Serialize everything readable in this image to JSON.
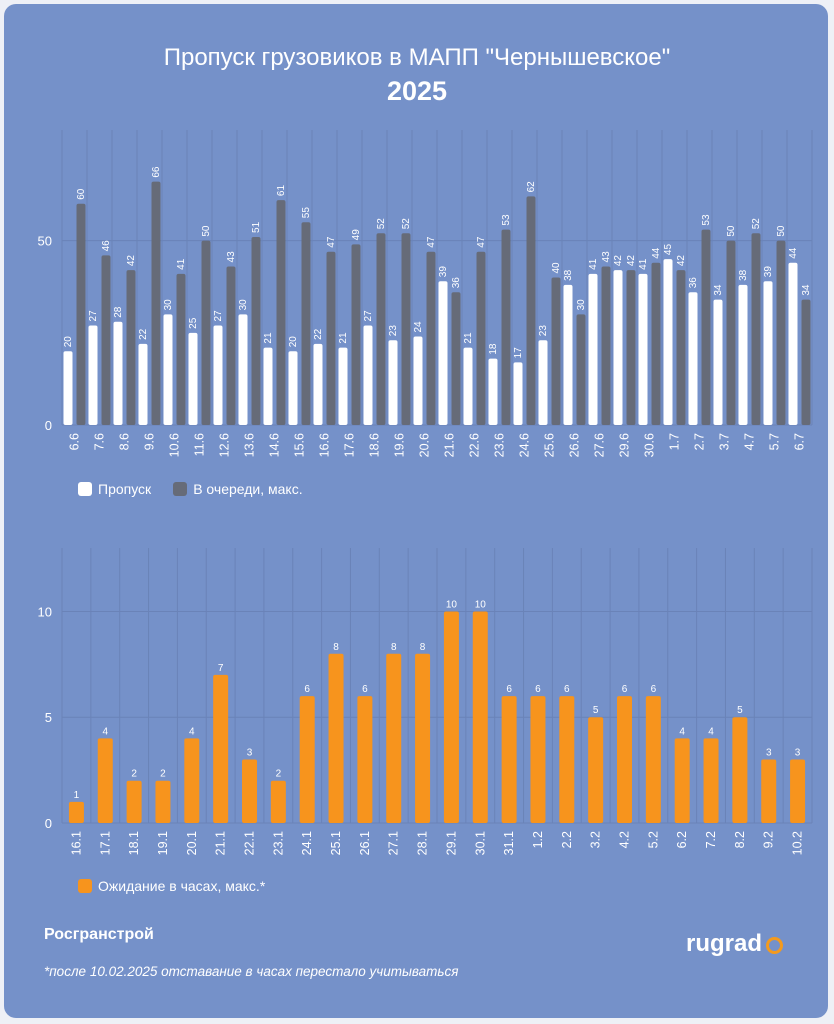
{
  "title": "Пропуск грузовиков в МАПП \"Чернышевское\"",
  "subtitle": "2025",
  "source": "Росгранстрой",
  "footnote": "*после 10.02.2025 отставание в часах перестало учитываться",
  "logo": "rugrad",
  "colors": {
    "background": "#7591c9",
    "white_series": "#ffffff",
    "gray_series": "#666b78",
    "orange_series": "#f7941d",
    "grid": "#6a83b8"
  },
  "chart_data": [
    {
      "type": "bar",
      "title": "",
      "xlabel": "",
      "ylabel": "",
      "ylim": [
        0,
        80
      ],
      "yticks": [
        0,
        50
      ],
      "grid": true,
      "legend": "bottom-left",
      "categories": [
        "6.6",
        "7.6",
        "8.6",
        "9.6",
        "10.6",
        "11.6",
        "12.6",
        "13.6",
        "14.6",
        "15.6",
        "16.6",
        "17.6",
        "18.6",
        "19.6",
        "20.6",
        "21.6",
        "22.6",
        "23.6",
        "24.6",
        "25.6",
        "26.6",
        "27.6",
        "29.6",
        "30.6",
        "1.7",
        "2.7",
        "3.7",
        "4.7",
        "5.7",
        "6.7"
      ],
      "series": [
        {
          "name": "Пропуск",
          "color": "#ffffff",
          "values": [
            20,
            27,
            28,
            22,
            30,
            25,
            27,
            30,
            21,
            20,
            22,
            21,
            27,
            23,
            24,
            39,
            21,
            18,
            17,
            23,
            38,
            41,
            42,
            41,
            45,
            36,
            34,
            38,
            39,
            44
          ]
        },
        {
          "name": "В очереди, макс.",
          "color": "#666b78",
          "values": [
            60,
            46,
            42,
            66,
            41,
            50,
            43,
            51,
            61,
            55,
            47,
            49,
            52,
            52,
            47,
            36,
            47,
            53,
            62,
            40,
            30,
            43,
            42,
            44,
            42,
            53,
            50,
            52,
            50,
            34
          ]
        }
      ]
    },
    {
      "type": "bar",
      "title": "",
      "xlabel": "",
      "ylabel": "",
      "ylim": [
        0,
        13
      ],
      "yticks": [
        0,
        5,
        10
      ],
      "grid": true,
      "legend": "bottom-left",
      "categories": [
        "16.1",
        "17.1",
        "18.1",
        "19.1",
        "20.1",
        "21.1",
        "22.1",
        "23.1",
        "24.1",
        "25.1",
        "26.1",
        "27.1",
        "28.1",
        "29.1",
        "30.1",
        "31.1",
        "1.2",
        "2.2",
        "3.2",
        "4.2",
        "5.2",
        "6.2",
        "7.2",
        "8.2",
        "9.2",
        "10.2"
      ],
      "series": [
        {
          "name": "Ожидание в часах, макс.*",
          "color": "#f7941d",
          "values": [
            1,
            4,
            2,
            2,
            4,
            7,
            3,
            2,
            6,
            8,
            6,
            8,
            8,
            10,
            10,
            6,
            6,
            6,
            5,
            6,
            6,
            4,
            4,
            5,
            3,
            3
          ]
        }
      ]
    }
  ]
}
